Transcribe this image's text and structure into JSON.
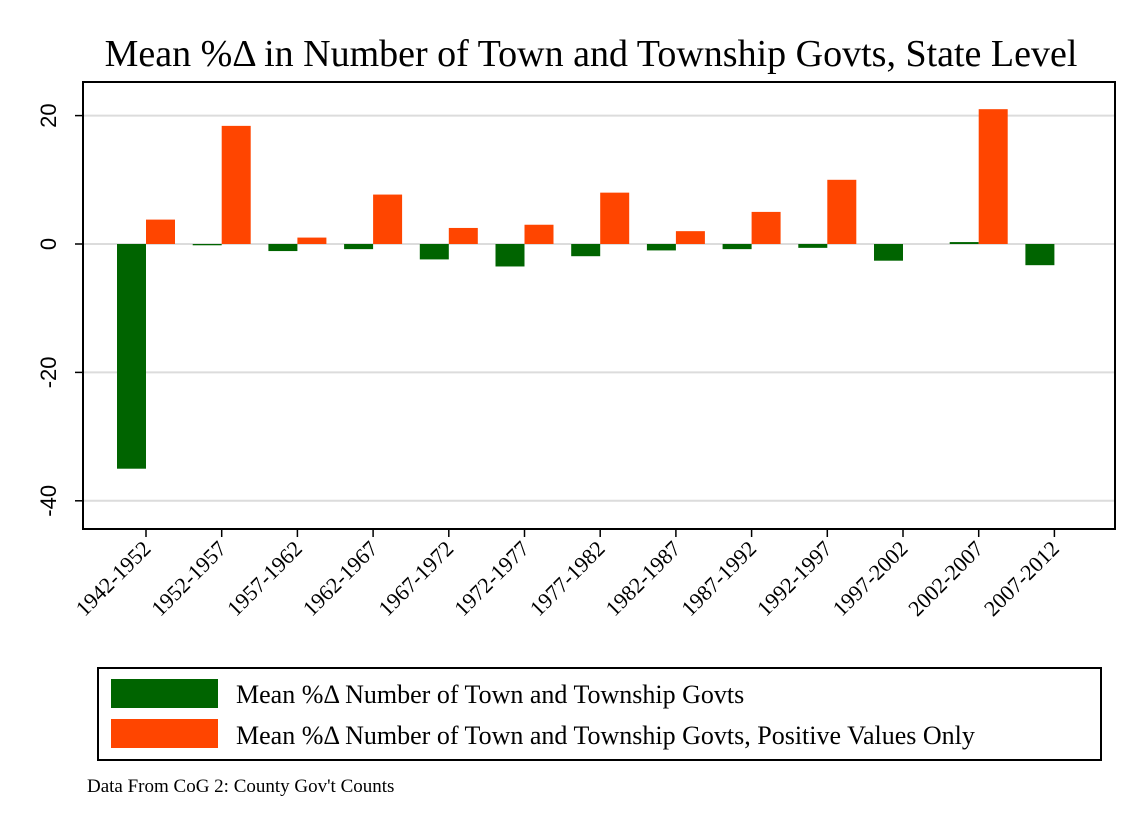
{
  "chart_data": {
    "type": "bar",
    "title": "Mean %Δ in Number of Town and Township Govts, State Level",
    "xlabel": "",
    "ylabel": "",
    "ylim": [
      -45,
      25
    ],
    "yticks": [
      20,
      0,
      -20,
      -40
    ],
    "grid": true,
    "legend_position": "bottom",
    "categories": [
      "1942-1952",
      "1952-1957",
      "1957-1962",
      "1962-1967",
      "1967-1972",
      "1972-1977",
      "1977-1982",
      "1982-1987",
      "1987-1992",
      "1992-1997",
      "1997-2002",
      "2002-2007",
      "2007-2012"
    ],
    "series": [
      {
        "name": "Mean %Δ Number of Town and Township Govts",
        "color": "#006400",
        "values": [
          -35.0,
          -0.2,
          -1.1,
          -0.8,
          -2.4,
          -3.5,
          -1.9,
          -1.0,
          -0.8,
          -0.6,
          -2.6,
          0.3,
          -3.3
        ]
      },
      {
        "name": "Mean %Δ Number of Town and Township Govts, Positive Values Only",
        "color": "#FF4500",
        "values": [
          3.8,
          18.4,
          1.0,
          7.7,
          2.5,
          3.0,
          8.0,
          2.0,
          5.0,
          10.0,
          0.0,
          21.0,
          0.0
        ]
      }
    ],
    "note": "Data From CoG 2: County Gov't Counts"
  }
}
